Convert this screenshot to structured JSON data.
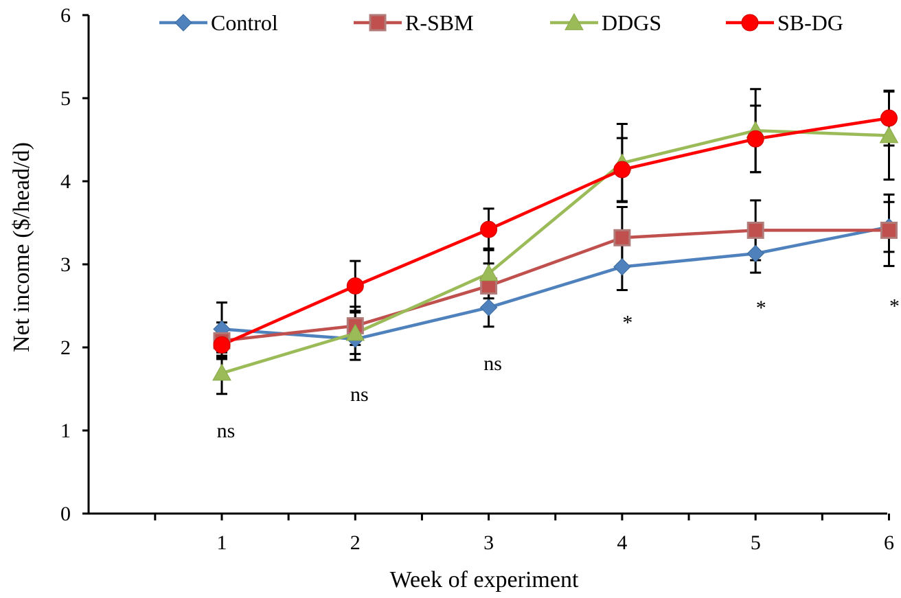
{
  "chart_data": {
    "type": "line",
    "title": "",
    "xlabel": "Week of experiment",
    "ylabel": "Net income ($/head/d)",
    "x": [
      1,
      2,
      3,
      4,
      5,
      6
    ],
    "x_tick_labels": [
      "1",
      "2",
      "3",
      "4",
      "5",
      "6"
    ],
    "ylim": [
      0,
      6
    ],
    "y_ticks": [
      0,
      1,
      2,
      3,
      4,
      5,
      6
    ],
    "y_tick_labels": [
      "0",
      "1",
      "2",
      "3",
      "4",
      "5",
      "6"
    ],
    "grid": false,
    "legend_position": "top",
    "series": [
      {
        "name": "Control",
        "color": "#4F81BD",
        "marker": "diamond",
        "values": [
          2.22,
          2.1,
          2.48,
          2.97,
          3.13,
          3.45
        ],
        "error": [
          0.32,
          0.25,
          0.23,
          0.28,
          0.23,
          0.3
        ]
      },
      {
        "name": "R-SBM",
        "color": "#C0504D",
        "marker": "square",
        "values": [
          2.08,
          2.26,
          2.74,
          3.32,
          3.41,
          3.41
        ],
        "error": [
          0.22,
          0.23,
          0.27,
          0.37,
          0.36,
          0.43
        ]
      },
      {
        "name": "DDGS",
        "color": "#9BBB59",
        "marker": "triangle",
        "values": [
          1.69,
          2.17,
          2.89,
          4.22,
          4.61,
          4.55
        ],
        "error": [
          0.25,
          0.25,
          0.3,
          0.47,
          0.5,
          0.53
        ]
      },
      {
        "name": "SB-DG",
        "color": "#FF0000",
        "marker": "circle",
        "values": [
          2.03,
          2.74,
          3.42,
          4.14,
          4.51,
          4.76
        ],
        "error": [
          0.15,
          0.3,
          0.25,
          0.38,
          0.4,
          0.33
        ]
      }
    ],
    "annotations": [
      {
        "x": 1,
        "y": 1.0,
        "text": "ns"
      },
      {
        "x": 2,
        "y": 1.44,
        "text": "ns"
      },
      {
        "x": 3,
        "y": 1.81,
        "text": "ns"
      },
      {
        "x": 4,
        "y": 2.3,
        "text": "*"
      },
      {
        "x": 5,
        "y": 2.48,
        "text": "*"
      },
      {
        "x": 6,
        "y": 2.5,
        "text": "*"
      }
    ]
  }
}
